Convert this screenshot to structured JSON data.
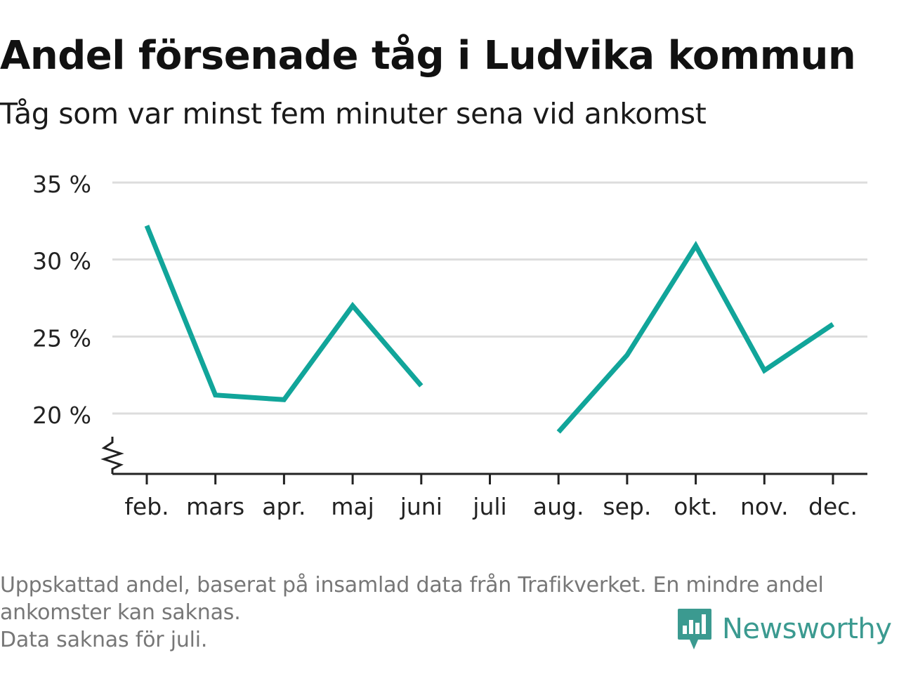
{
  "title": "Andel försenade tåg i Ludvika kommun",
  "subtitle": "Tåg som var minst fem minuter sena vid ankomst",
  "footnote": {
    "lines": [
      "Uppskattad andel, baserat på insamlad data från Trafikverket. En mindre andel",
      "ankomster kan saknas.",
      "Data saknas för juli."
    ]
  },
  "brand": {
    "name": "Newsworthy",
    "icon": "newsworthy-logo-icon",
    "color": "#3b9a90"
  },
  "chart_data": {
    "type": "line",
    "categories": [
      "feb.",
      "mars",
      "apr.",
      "maj",
      "juni",
      "juli",
      "aug.",
      "sep.",
      "okt.",
      "nov.",
      "dec."
    ],
    "series": [
      {
        "values": [
          32.2,
          21.2,
          20.9,
          27.0,
          21.8,
          null,
          18.8,
          23.8,
          30.9,
          22.8,
          25.8
        ],
        "color": "#11a59a"
      }
    ],
    "yticks": [
      20,
      35,
      30,
      25
    ],
    "ytick_labels": [
      "20 %",
      "35 %",
      "30 %",
      "25 %"
    ],
    "ylim": [
      16.0,
      35
    ],
    "y_axis_break": true,
    "grid": true,
    "legend": "none",
    "colors": {
      "grid": "#dddddd",
      "axis": "#222222"
    }
  }
}
